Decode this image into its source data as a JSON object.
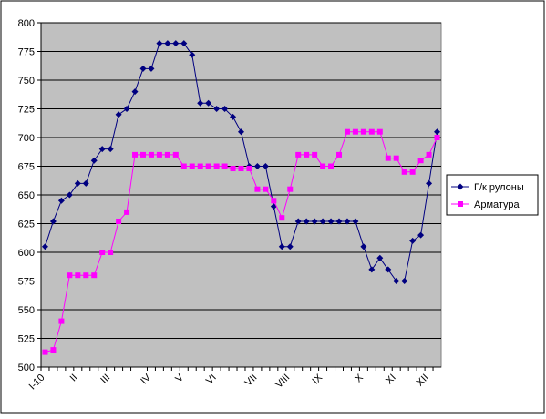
{
  "chart_data": {
    "type": "line",
    "categories": [
      "I-10",
      null,
      null,
      null,
      "II",
      null,
      null,
      null,
      "III",
      null,
      null,
      null,
      null,
      "IV",
      null,
      null,
      null,
      "V",
      null,
      null,
      null,
      "VI",
      null,
      null,
      null,
      null,
      "VII",
      null,
      null,
      null,
      "VIII",
      null,
      null,
      null,
      "IX",
      null,
      null,
      null,
      null,
      "X",
      null,
      null,
      null,
      "XI",
      null,
      null,
      null,
      "XII",
      null
    ],
    "series": [
      {
        "name": "Г/к рулоны",
        "color": "#000080",
        "marker": "diamond",
        "values": [
          605,
          627,
          645,
          650,
          660,
          660,
          680,
          690,
          690,
          720,
          725,
          740,
          760,
          760,
          782,
          782,
          782,
          782,
          772,
          730,
          730,
          725,
          725,
          718,
          705,
          675,
          675,
          675,
          640,
          605,
          605,
          627,
          627,
          627,
          627,
          627,
          627,
          627,
          627,
          605,
          585,
          595,
          585,
          575,
          575,
          610,
          615,
          660,
          705
        ]
      },
      {
        "name": "Арматура",
        "color": "#ff00ff",
        "marker": "square",
        "values": [
          513,
          515,
          540,
          580,
          580,
          580,
          580,
          600,
          600,
          627,
          635,
          685,
          685,
          685,
          685,
          685,
          685,
          675,
          675,
          675,
          675,
          675,
          675,
          673,
          673,
          673,
          655,
          655,
          645,
          630,
          655,
          685,
          685,
          685,
          675,
          675,
          685,
          705,
          705,
          705,
          705,
          705,
          682,
          682,
          670,
          670,
          680,
          685,
          700
        ]
      }
    ],
    "ylim": [
      500,
      800
    ],
    "yticks": [
      500,
      525,
      550,
      575,
      600,
      625,
      650,
      675,
      700,
      725,
      750,
      775,
      800
    ],
    "grid": true,
    "legend": "right"
  }
}
